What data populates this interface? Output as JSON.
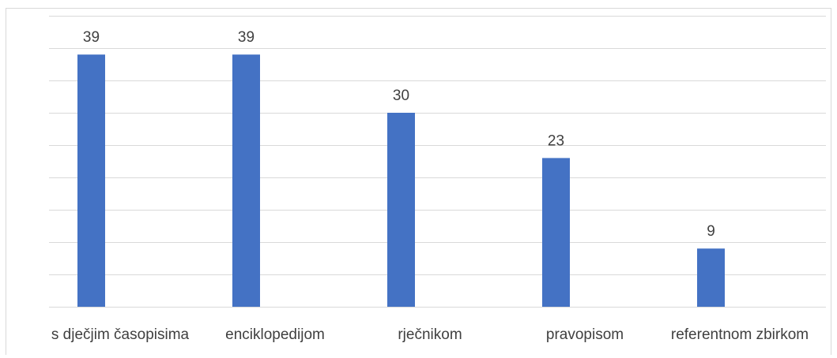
{
  "chart_data": {
    "type": "bar",
    "categories": [
      "s dječjim časopisima",
      "enciklopedijom",
      "rječnikom",
      "pravopisom",
      "referentnom zbirkom"
    ],
    "values": [
      39,
      39,
      30,
      23,
      9
    ],
    "ylim": [
      0,
      45
    ],
    "ytick_step": 5,
    "y_tick_labels_visible": false,
    "grid": true,
    "legend": "none",
    "data_labels": true,
    "bar_color": "#4472c4"
  }
}
